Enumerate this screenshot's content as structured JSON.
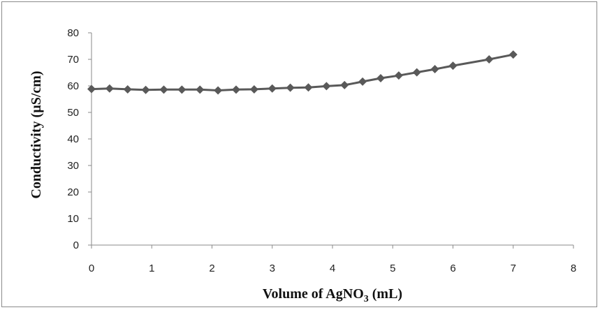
{
  "chart_data": {
    "type": "line",
    "title": "",
    "xlabel_main": "Volume of AgNO",
    "xlabel_sub": "3",
    "xlabel_unit": " (mL)",
    "ylabel": "Conductivity (µS/cm)",
    "xlim": [
      0,
      8
    ],
    "ylim": [
      0,
      80
    ],
    "xticks": [
      0,
      1,
      2,
      3,
      4,
      5,
      6,
      7,
      8
    ],
    "yticks": [
      0,
      10,
      20,
      30,
      40,
      50,
      60,
      70,
      80
    ],
    "grid": false,
    "legend": "none",
    "series": [
      {
        "color": "#595959",
        "marker": "diamond",
        "x": [
          0,
          0.3,
          0.6,
          0.9,
          1.2,
          1.5,
          1.8,
          2.1,
          2.4,
          2.7,
          3.0,
          3.3,
          3.6,
          3.9,
          4.2,
          4.5,
          4.8,
          5.1,
          5.4,
          5.7,
          6.0,
          6.6,
          7.0
        ],
        "y": [
          58.8,
          59.0,
          58.7,
          58.5,
          58.6,
          58.6,
          58.6,
          58.3,
          58.6,
          58.7,
          59.0,
          59.3,
          59.4,
          59.9,
          60.3,
          61.6,
          62.9,
          63.9,
          65.1,
          66.3,
          67.6,
          70.0,
          71.8
        ]
      }
    ]
  }
}
